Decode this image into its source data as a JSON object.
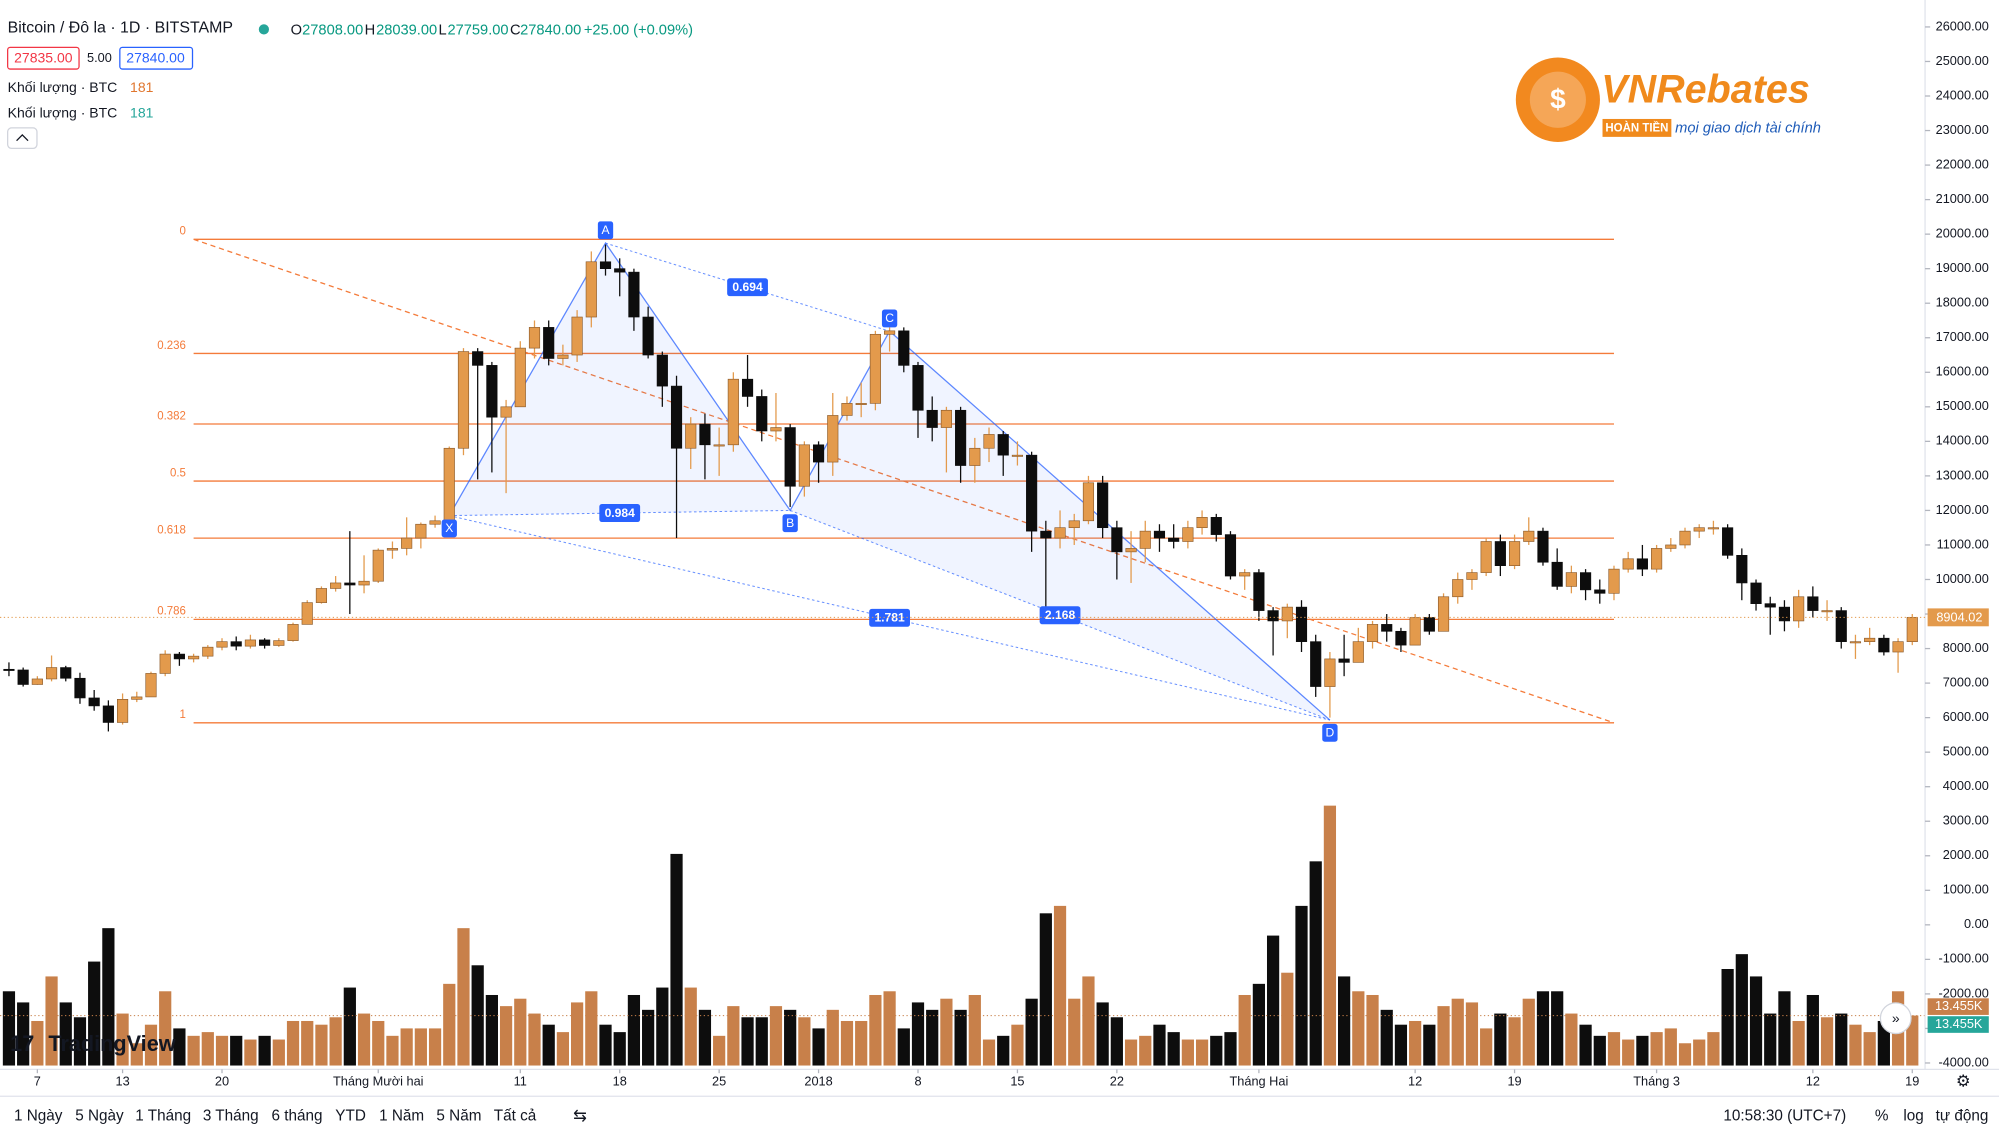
{
  "header": {
    "symbol": "Bitcoin / Đô la · 1D · BITSTAMP",
    "ohlc": [
      {
        "label": "O",
        "value": "27808.00"
      },
      {
        "label": "H",
        "value": "28039.00"
      },
      {
        "label": "L",
        "value": "27759.00"
      },
      {
        "label": "C",
        "value": "27840.00"
      }
    ],
    "change": "+25.00 (+0.09%)",
    "bid": "27835.00",
    "spread": "5.00",
    "ask": "27840.00",
    "indicators": [
      {
        "name": "Khối lượng · BTC",
        "value": "181"
      },
      {
        "name": "Khối lượng · BTC",
        "value": "181"
      }
    ]
  },
  "logo": {
    "name": "VNRebates",
    "badge": "HOÀN TIỀN",
    "tagline": "mọi giao dịch tài chính"
  },
  "watermark": "TradingView",
  "chart_data": {
    "type": "candlestick",
    "open": [
      7400,
      7380,
      6960,
      7120,
      7450,
      7140,
      6570,
      6340,
      5860,
      6530,
      6600,
      7280,
      7840,
      7700,
      7780,
      8040,
      8200,
      8070,
      8250,
      8090,
      8230,
      8700,
      9330,
      9740,
      9900,
      9840,
      9950,
      10850,
      10900,
      11200,
      11600,
      11700,
      13800,
      16600,
      16200,
      14700,
      15000,
      16700,
      17300,
      16400,
      16500,
      17600,
      19200,
      19000,
      18900,
      17600,
      16500,
      15600,
      13800,
      14500,
      13900,
      13900,
      15800,
      15300,
      14300,
      14400,
      12700,
      13900,
      13400,
      14750,
      15100,
      15100,
      17100,
      17200,
      16200,
      14900,
      14400,
      14900,
      13300,
      13800,
      14200,
      13600,
      13600,
      11400,
      11200,
      11500,
      11700,
      12800,
      11500,
      10800,
      10900,
      11400,
      11200,
      11100,
      11500,
      11800,
      11300,
      10100,
      10200,
      9100,
      8800,
      9200,
      8200,
      6900,
      7700,
      7600,
      8200,
      8700,
      8500,
      8100,
      8900,
      8500,
      9500,
      10000,
      10200,
      11100,
      10400,
      11100,
      11400,
      10500,
      9800,
      10200,
      9700,
      9600,
      10300,
      10600,
      10300,
      10900,
      11000,
      11400,
      11500,
      11500,
      10700,
      9900,
      9300,
      9200,
      8800,
      9500,
      9100,
      9100,
      8200,
      8200,
      8300,
      7900,
      8200
    ],
    "high": [
      7600,
      7450,
      7200,
      7800,
      7500,
      7300,
      6800,
      6500,
      6700,
      6750,
      7330,
      7950,
      7900,
      7850,
      8100,
      8300,
      8350,
      8400,
      8300,
      8300,
      8750,
      9400,
      9800,
      10100,
      11400,
      10700,
      10900,
      11100,
      11800,
      11650,
      11850,
      13850,
      16700,
      16700,
      16300,
      15200,
      16900,
      17500,
      17500,
      16800,
      17800,
      19500,
      19700,
      19300,
      19000,
      17900,
      16600,
      15900,
      14700,
      14800,
      14400,
      16000,
      16500,
      15500,
      15400,
      14500,
      14000,
      14000,
      15400,
      15300,
      15700,
      17200,
      17300,
      17300,
      16300,
      15300,
      15000,
      15000,
      14100,
      14400,
      14300,
      14000,
      13700,
      11700,
      12000,
      11900,
      13000,
      13000,
      11700,
      11400,
      11700,
      11600,
      11600,
      11700,
      12000,
      11900,
      11400,
      10300,
      10300,
      9200,
      9300,
      9400,
      8400,
      7900,
      8400,
      8600,
      8800,
      9000,
      8600,
      9000,
      9000,
      9600,
      10200,
      10300,
      11200,
      11300,
      11300,
      11800,
      11500,
      10900,
      10400,
      10300,
      10000,
      10400,
      10800,
      11000,
      11000,
      11200,
      11500,
      11600,
      11700,
      11600,
      10900,
      10000,
      9500,
      9400,
      9700,
      9800,
      9400,
      9200,
      8400,
      8600,
      8400,
      8300,
      9000
    ],
    "low": [
      7200,
      6900,
      6950,
      7050,
      7050,
      6400,
      6200,
      5600,
      5800,
      6450,
      6600,
      7200,
      7500,
      7600,
      7700,
      7950,
      7950,
      8000,
      8000,
      8050,
      8200,
      8700,
      9300,
      9650,
      9000,
      9600,
      9900,
      10600,
      10700,
      10900,
      11500,
      11650,
      13600,
      12900,
      13100,
      12500,
      15000,
      16400,
      16200,
      16200,
      16300,
      17300,
      18800,
      18200,
      17200,
      16400,
      15000,
      11200,
      13200,
      12900,
      13000,
      13700,
      15000,
      14000,
      14000,
      12100,
      12400,
      12800,
      13000,
      14600,
      14700,
      14900,
      16600,
      16000,
      14100,
      14000,
      13100,
      12800,
      12800,
      13400,
      13000,
      13300,
      10800,
      9000,
      10900,
      11000,
      11600,
      11200,
      10000,
      9900,
      10500,
      10800,
      10900,
      10900,
      11300,
      11100,
      10000,
      9700,
      8800,
      7800,
      8300,
      7900,
      6600,
      6000,
      7200,
      7600,
      8000,
      8200,
      7900,
      8100,
      8400,
      8500,
      9300,
      9700,
      10100,
      10100,
      10300,
      11000,
      10400,
      9700,
      9600,
      9400,
      9300,
      9400,
      10200,
      10100,
      10200,
      10800,
      10900,
      11200,
      11300,
      10600,
      9400,
      9100,
      8400,
      8500,
      8600,
      8900,
      8800,
      8000,
      7700,
      8100,
      7800,
      7300,
      8100
    ],
    "close": [
      7380,
      6960,
      7120,
      7450,
      7140,
      6570,
      6340,
      5860,
      6530,
      6600,
      7280,
      7840,
      7700,
      7780,
      8040,
      8200,
      8070,
      8250,
      8090,
      8230,
      8700,
      9330,
      9740,
      9900,
      9840,
      9950,
      10850,
      10900,
      11200,
      11600,
      11700,
      13800,
      16600,
      16200,
      14700,
      15000,
      16700,
      17300,
      16400,
      16500,
      17600,
      19200,
      19000,
      18900,
      17600,
      16500,
      15600,
      13800,
      14500,
      13900,
      13900,
      15800,
      15300,
      14300,
      14400,
      12700,
      13900,
      13400,
      14750,
      15100,
      15100,
      17100,
      17200,
      16200,
      14900,
      14400,
      14900,
      13300,
      13800,
      14200,
      13600,
      13600,
      11400,
      11200,
      11500,
      11700,
      12800,
      11500,
      10800,
      10900,
      11400,
      11200,
      11100,
      11500,
      11800,
      11300,
      10100,
      10200,
      9100,
      8800,
      9200,
      8200,
      6900,
      7700,
      7600,
      8200,
      8700,
      8500,
      8100,
      8900,
      8500,
      9500,
      10000,
      10200,
      11100,
      10400,
      11100,
      11400,
      10500,
      9800,
      10200,
      9700,
      9600,
      10300,
      10600,
      10300,
      10900,
      11000,
      11400,
      11500,
      11500,
      10700,
      9900,
      9300,
      9200,
      8800,
      9500,
      9100,
      9100,
      8200,
      8200,
      8300,
      7900,
      8200,
      8904.02
    ],
    "up_color": "#e39a4c",
    "down_color": "#0d0d0d",
    "volume": {
      "values": [
        20,
        17,
        12,
        24,
        17,
        13,
        28,
        37,
        14,
        6,
        11,
        20,
        10,
        8,
        9,
        8,
        8,
        7,
        8,
        7,
        12,
        12,
        11,
        13,
        21,
        14,
        12,
        8,
        10,
        10,
        10,
        22,
        37,
        27,
        19,
        16,
        18,
        14,
        11,
        9,
        17,
        20,
        11,
        9,
        19,
        15,
        21,
        57,
        21,
        15,
        8,
        16,
        13,
        13,
        16,
        15,
        13,
        10,
        15,
        12,
        12,
        19,
        20,
        10,
        17,
        15,
        18,
        15,
        19,
        7,
        8,
        11,
        18,
        41,
        43,
        18,
        24,
        17,
        13,
        7,
        8,
        11,
        9,
        7,
        7,
        8,
        9,
        19,
        22,
        35,
        25,
        43,
        55,
        70,
        24,
        20,
        19,
        15,
        11,
        12,
        11,
        16,
        18,
        17,
        10,
        14,
        13,
        18,
        20,
        20,
        14,
        11,
        8,
        9,
        7,
        8,
        9,
        10,
        6,
        7,
        9,
        26,
        30,
        24,
        14,
        20,
        12,
        19,
        13,
        14,
        11,
        9,
        12,
        20,
        13.455
      ],
      "last_label": "13.455K",
      "ylim": [
        0,
        287
      ],
      "up_color": "#c8804a",
      "down_color": "#0d0d0d"
    },
    "xlim": [
      -0.63,
      134.9
    ],
    "ylim": [
      -4185,
      26780
    ],
    "yticks": [
      {
        "value": 26000,
        "label": "26000.00"
      },
      {
        "value": 25000,
        "label": "25000.00"
      },
      {
        "value": 24000,
        "label": "24000.00"
      },
      {
        "value": 23000,
        "label": "23000.00"
      },
      {
        "value": 22000,
        "label": "22000.00"
      },
      {
        "value": 21000,
        "label": "21000.00"
      },
      {
        "value": 20000,
        "label": "20000.00"
      },
      {
        "value": 19000,
        "label": "19000.00"
      },
      {
        "value": 18000,
        "label": "18000.00"
      },
      {
        "value": 17000,
        "label": "17000.00"
      },
      {
        "value": 16000,
        "label": "16000.00"
      },
      {
        "value": 15000,
        "label": "15000.00"
      },
      {
        "value": 14000,
        "label": "14000.00"
      },
      {
        "value": 13000,
        "label": "13000.00"
      },
      {
        "value": 12000,
        "label": "12000.00"
      },
      {
        "value": 11000,
        "label": "11000.00"
      },
      {
        "value": 10000,
        "label": "10000.00"
      },
      {
        "value": 9000,
        "label": "9000.00"
      },
      {
        "value": 8000,
        "label": "8000.00"
      },
      {
        "value": 7000,
        "label": "7000.00"
      },
      {
        "value": 6000,
        "label": "6000.00"
      },
      {
        "value": 5000,
        "label": "5000.00"
      },
      {
        "value": 4000,
        "label": "4000.00"
      },
      {
        "value": 3000,
        "label": "3000.00"
      },
      {
        "value": 2000,
        "label": "2000.00"
      },
      {
        "value": 1000,
        "label": "1000.00"
      },
      {
        "value": 0,
        "label": "0.00"
      },
      {
        "value": -1000,
        "label": "-1000.00"
      },
      {
        "value": -2000,
        "label": "-2000.00"
      },
      {
        "value": -3000,
        "label": "-3000.00"
      },
      {
        "value": -4000,
        "label": "-4000.00"
      }
    ],
    "xticks": [
      {
        "value": 2,
        "label": "7"
      },
      {
        "value": 8,
        "label": "13"
      },
      {
        "value": 15,
        "label": "20"
      },
      {
        "value": 26,
        "label": "Tháng Mười hai"
      },
      {
        "value": 36,
        "label": "11"
      },
      {
        "value": 43,
        "label": "18"
      },
      {
        "value": 50,
        "label": "25"
      },
      {
        "value": 57,
        "label": "2018"
      },
      {
        "value": 64,
        "label": "8"
      },
      {
        "value": 71,
        "label": "15"
      },
      {
        "value": 78,
        "label": "22"
      },
      {
        "value": 88,
        "label": "Tháng Hai"
      },
      {
        "value": 99,
        "label": "12"
      },
      {
        "value": 106,
        "label": "19"
      },
      {
        "value": 116,
        "label": "Tháng 3"
      },
      {
        "value": 127,
        "label": "12"
      },
      {
        "value": 134,
        "label": "19"
      }
    ],
    "grid": false,
    "fib": {
      "levels": [
        0,
        0.236,
        0.382,
        0.5,
        0.618,
        0.786,
        1
      ],
      "price_0": 19850,
      "price_1": 5850,
      "start_index": 13,
      "end_index": 113,
      "color": "#f47b3a"
    },
    "pattern": {
      "points": [
        {
          "label": "X",
          "index": 31,
          "price": 11850
        },
        {
          "label": "A",
          "index": 42,
          "price": 19740
        },
        {
          "label": "B",
          "index": 55,
          "price": 12000
        },
        {
          "label": "C",
          "index": 62,
          "price": 17190
        },
        {
          "label": "D",
          "index": 93,
          "price": 5930
        }
      ],
      "ratios": {
        "AC": 0.694,
        "XB": 0.984,
        "XD": 1.781,
        "BD": 2.168
      },
      "color": "#2962ff"
    }
  },
  "toolbar": {
    "ranges": [
      "1 Ngày",
      "5 Ngày",
      "1 Tháng",
      "3 Tháng",
      "6 tháng",
      "YTD",
      "1 Năm",
      "5 Năm",
      "Tất cả"
    ],
    "time": "10:58:30 (UTC+7)",
    "options": [
      "%",
      "log",
      "tự động"
    ]
  }
}
